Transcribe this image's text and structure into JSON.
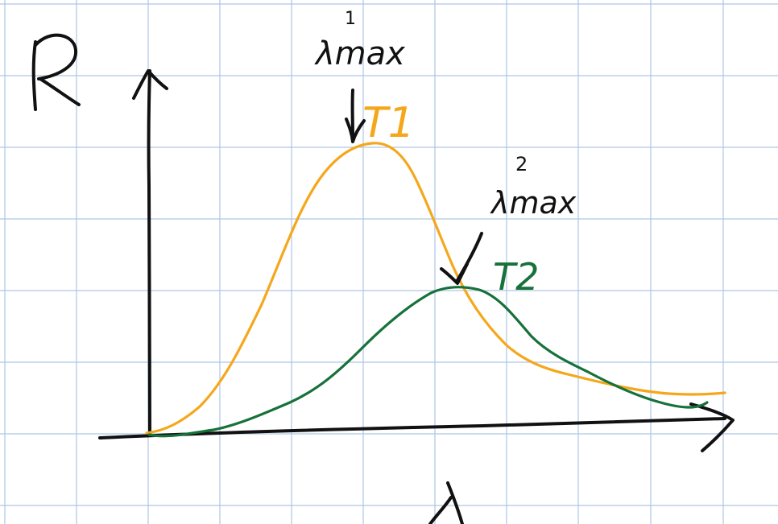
{
  "labels": {
    "y_axis": "R",
    "x_axis": "λ",
    "lambda_max_1": "λmax",
    "lambda_max_1_sup": "1",
    "lambda_max_2": "λmax",
    "lambda_max_2_sup": "2",
    "t1": "T1",
    "t2": "T2"
  },
  "colors": {
    "ink": "#111111",
    "t1_curve": "#f5a71c",
    "t2_curve": "#16713a",
    "grid": "#aec6e4"
  }
}
